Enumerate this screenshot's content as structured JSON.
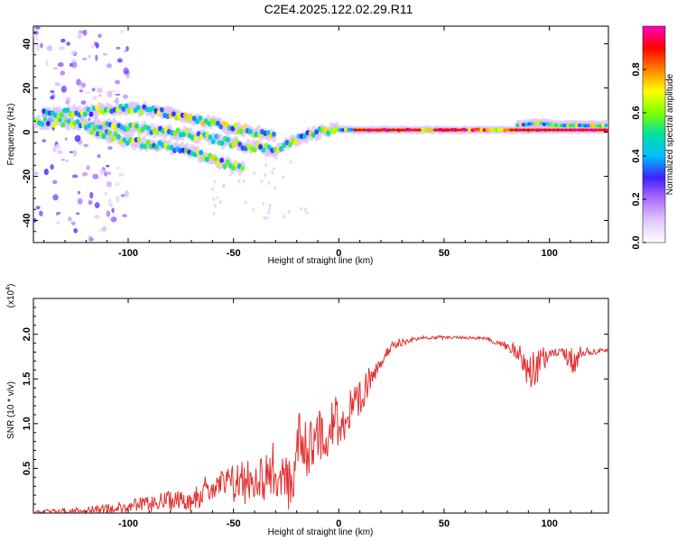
{
  "title": "C2E4.2025.122.02.29.R11",
  "colors": {
    "line": "#e23030",
    "colormap": [
      "#ffffff",
      "#e0c8ff",
      "#b070ff",
      "#4020ff",
      "#00c0ff",
      "#00e0a0",
      "#80ff00",
      "#ffff00",
      "#ff8000",
      "#ff0000",
      "#ff00c0"
    ]
  },
  "chart_data": [
    {
      "type": "heatmap",
      "xlabel": "Height of straight line (km)",
      "ylabel": "Frequency (Hz)",
      "xlim": [
        -145,
        128
      ],
      "ylim": [
        -50,
        48
      ],
      "x_ticks": [
        -100,
        -50,
        0,
        50,
        100
      ],
      "y_ticks": [
        -40,
        -20,
        0,
        20,
        40
      ],
      "x_tick_labels": [
        "-100",
        "-50",
        "0",
        "50",
        "100"
      ],
      "y_tick_labels": [
        "-40",
        "-20",
        "0",
        "20",
        "40"
      ],
      "colorbar": {
        "label": "Normalized spectral amplitude",
        "range": [
          0,
          1
        ],
        "ticks": [
          0.0,
          0.2,
          0.4,
          0.6,
          0.8
        ],
        "tick_labels": [
          "0.0",
          "0.2",
          "0.4",
          "0.6",
          "0.8"
        ]
      },
      "ridges": [
        {
          "name": "",
          "points": [
            [
              -145,
              5
            ],
            [
              -120,
              4
            ],
            [
              -100,
              2
            ],
            [
              -80,
              0
            ],
            [
              -60,
              -3
            ],
            [
              -45,
              -6
            ],
            [
              -30,
              -8
            ],
            [
              -20,
              -3
            ],
            [
              -10,
              0
            ],
            [
              0,
              1
            ],
            [
              30,
              1
            ],
            [
              60,
              1
            ],
            [
              90,
              1
            ],
            [
              128,
              1
            ]
          ]
        },
        {
          "name": "",
          "points": [
            [
              -140,
              8
            ],
            [
              -120,
              9
            ],
            [
              -105,
              11
            ],
            [
              -90,
              10
            ],
            [
              -75,
              7
            ],
            [
              -60,
              4
            ],
            [
              -50,
              2
            ],
            [
              -40,
              0
            ],
            [
              -30,
              -2
            ]
          ]
        },
        {
          "name": "",
          "points": [
            [
              -120,
              2
            ],
            [
              -100,
              -4
            ],
            [
              -85,
              -6
            ],
            [
              -70,
              -9
            ],
            [
              -55,
              -14
            ],
            [
              -45,
              -17
            ]
          ]
        },
        {
          "name": "",
          "points": [
            [
              85,
              3
            ],
            [
              95,
              4
            ],
            [
              105,
              3
            ],
            [
              128,
              3
            ]
          ]
        }
      ]
    },
    {
      "type": "line",
      "xlabel": "Height of straight line (km)",
      "ylabel": "SNR (10 * v/v)",
      "y_multiplier": "(x10",
      "y_multiplier_exp": "4",
      "y_multiplier_close": ")",
      "xlim": [
        -145,
        128
      ],
      "ylim": [
        0,
        2.4
      ],
      "x_ticks": [
        -100,
        -50,
        0,
        50,
        100
      ],
      "y_ticks": [
        0.5,
        1.0,
        1.5,
        2.0
      ],
      "x_tick_labels": [
        "-100",
        "-50",
        "0",
        "50",
        "100"
      ],
      "y_tick_labels": [
        "0.5",
        "1.0",
        "1.5",
        "2.0"
      ],
      "series": [
        {
          "name": "",
          "envelope": [
            [
              -145,
              0.03
            ],
            [
              -130,
              0.05
            ],
            [
              -120,
              0.08
            ],
            [
              -110,
              0.1
            ],
            [
              -100,
              0.14
            ],
            [
              -90,
              0.18
            ],
            [
              -80,
              0.24
            ],
            [
              -70,
              0.3
            ],
            [
              -60,
              0.42
            ],
            [
              -50,
              0.55
            ],
            [
              -40,
              0.62
            ],
            [
              -30,
              0.75
            ],
            [
              -22,
              0.55
            ],
            [
              -20,
              1.15
            ],
            [
              -15,
              1.05
            ],
            [
              -10,
              1.15
            ],
            [
              -5,
              1.25
            ],
            [
              0,
              1.3
            ],
            [
              5,
              1.35
            ],
            [
              10,
              1.45
            ],
            [
              15,
              1.65
            ],
            [
              20,
              1.8
            ],
            [
              25,
              1.9
            ],
            [
              30,
              1.95
            ],
            [
              40,
              1.98
            ],
            [
              50,
              1.98
            ],
            [
              60,
              1.98
            ],
            [
              70,
              1.97
            ],
            [
              80,
              1.92
            ],
            [
              85,
              1.88
            ],
            [
              88,
              1.9
            ],
            [
              92,
              1.8
            ],
            [
              95,
              1.85
            ],
            [
              100,
              1.83
            ],
            [
              105,
              1.86
            ],
            [
              110,
              1.84
            ],
            [
              115,
              1.85
            ],
            [
              120,
              1.84
            ],
            [
              128,
              1.84
            ]
          ],
          "noise": [
            [
              -145,
              0.02
            ],
            [
              -120,
              0.05
            ],
            [
              -100,
              0.08
            ],
            [
              -80,
              0.12
            ],
            [
              -60,
              0.2
            ],
            [
              -45,
              0.3
            ],
            [
              -30,
              0.35
            ],
            [
              -21,
              0.4
            ],
            [
              -15,
              0.4
            ],
            [
              0,
              0.35
            ],
            [
              10,
              0.3
            ],
            [
              15,
              0.15
            ],
            [
              25,
              0.07
            ],
            [
              40,
              0.02
            ],
            [
              70,
              0.02
            ],
            [
              85,
              0.1
            ],
            [
              90,
              0.3
            ],
            [
              95,
              0.25
            ],
            [
              100,
              0.05
            ],
            [
              108,
              0.1
            ],
            [
              112,
              0.2
            ],
            [
              116,
              0.06
            ],
            [
              128,
              0.02
            ]
          ]
        }
      ]
    }
  ]
}
